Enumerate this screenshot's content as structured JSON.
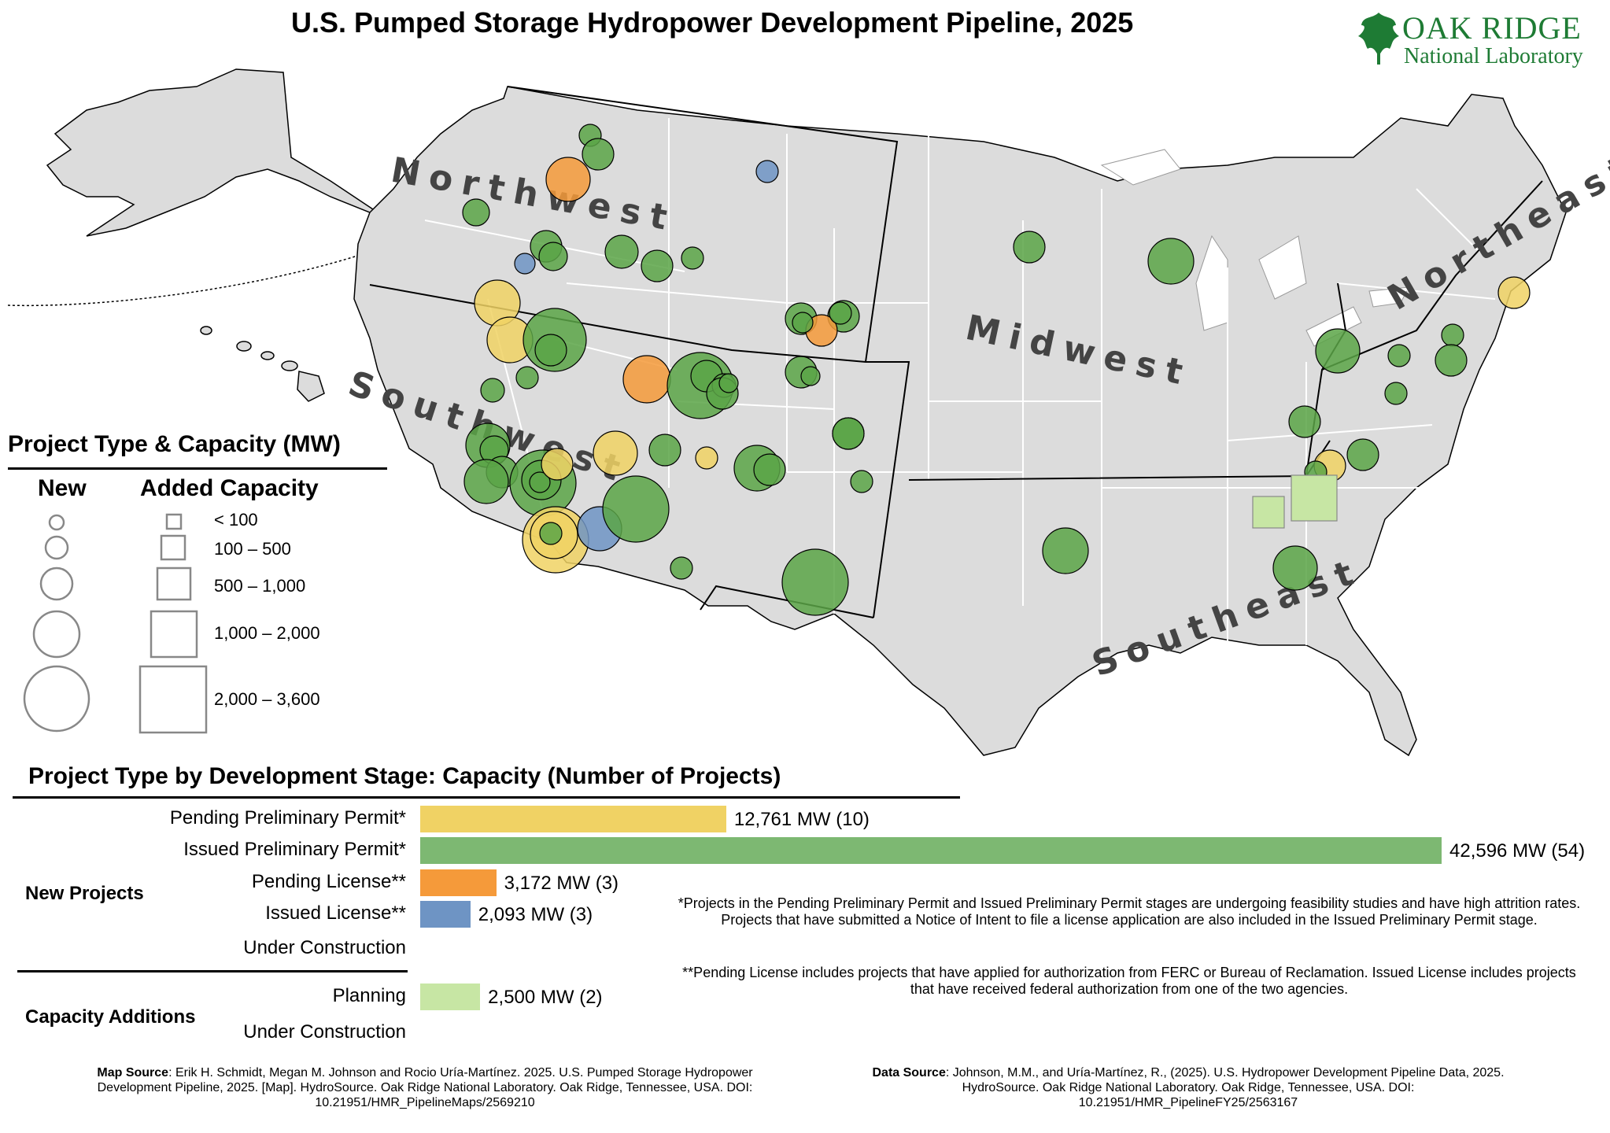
{
  "title": "U.S. Pumped Storage Hydropower Development Pipeline, 2025",
  "logo": {
    "line1": "OAK RIDGE",
    "line2": "National Laboratory",
    "color": "#1e7b34"
  },
  "map": {
    "regions": [
      "Northwest",
      "Southwest",
      "Midwest",
      "Northeast",
      "Southeast"
    ],
    "land_color": "#dcdcdc",
    "colors": {
      "pending_preliminary_permit": "#f0d264",
      "issued_preliminary_permit": "#5aa546",
      "pending_license": "#f59a3a",
      "issued_license": "#6e94c4",
      "planning": "#c7e6a4"
    }
  },
  "legend": {
    "title": "Project Type & Capacity (MW)",
    "new_header": "New",
    "added_header": "Added Capacity",
    "classes": [
      "< 100",
      "100 – 500",
      "500 – 1,000",
      "1,000 – 2,000",
      "2,000 – 3,600"
    ]
  },
  "chart_data": {
    "type": "bar",
    "title": "Project Type by Development Stage: Capacity (Number of Projects)",
    "groups": [
      "New Projects",
      "Capacity Additions"
    ],
    "categories": [
      "Pending Preliminary Permit*",
      "Issued Preliminary Permit*",
      "Pending License**",
      "Issued License**",
      "Under Construction",
      "Planning",
      "Under Construction"
    ],
    "values_mw": [
      12761,
      42596,
      3172,
      2093,
      0,
      2500,
      0
    ],
    "projects": [
      10,
      54,
      3,
      3,
      0,
      2,
      0
    ],
    "labels": [
      "12,761 MW (10)",
      "42,596 MW (54)",
      "3,172 MW (3)",
      "2,093 MW (3)",
      "",
      "2,500 MW (2)",
      ""
    ],
    "colors": [
      "#f0d264",
      "#7db872",
      "#f59a3a",
      "#6e94c4",
      "",
      "#c7e6a4",
      ""
    ],
    "xlim": [
      0,
      42596
    ]
  },
  "notes": {
    "n1": "*Projects in the Pending Preliminary Permit and Issued Preliminary Permit stages are undergoing feasibility studies and have high attrition rates. Projects that have submitted a Notice of Intent to file a license application are also included in the Issued Preliminary Permit stage.",
    "n2": "**Pending License includes projects that have applied for authorization from FERC or Bureau of Reclamation. Issued License includes projects that have received federal authorization from one of the two agencies."
  },
  "sources": {
    "map_label": "Map Source",
    "map_text": ": Erik H. Schmidt, Megan M. Johnson and Rocio Uría-Martínez. 2025. U.S. Pumped Storage Hydropower Development Pipeline, 2025. [Map]. HydroSource. Oak Ridge National Laboratory. Oak Ridge, Tennessee, USA. DOI: 10.21951/HMR_PipelineMaps/2569210",
    "data_label": "Data Source",
    "data_text": ": Johnson, M.M., and Uría-Martínez, R., (2025). U.S. Hydropower Development Pipeline Data, 2025. HydroSource. Oak Ridge National Laboratory. Oak Ridge, Tennessee, USA. DOI: 10.21951/HMR_PipelineFY25/2563167"
  }
}
